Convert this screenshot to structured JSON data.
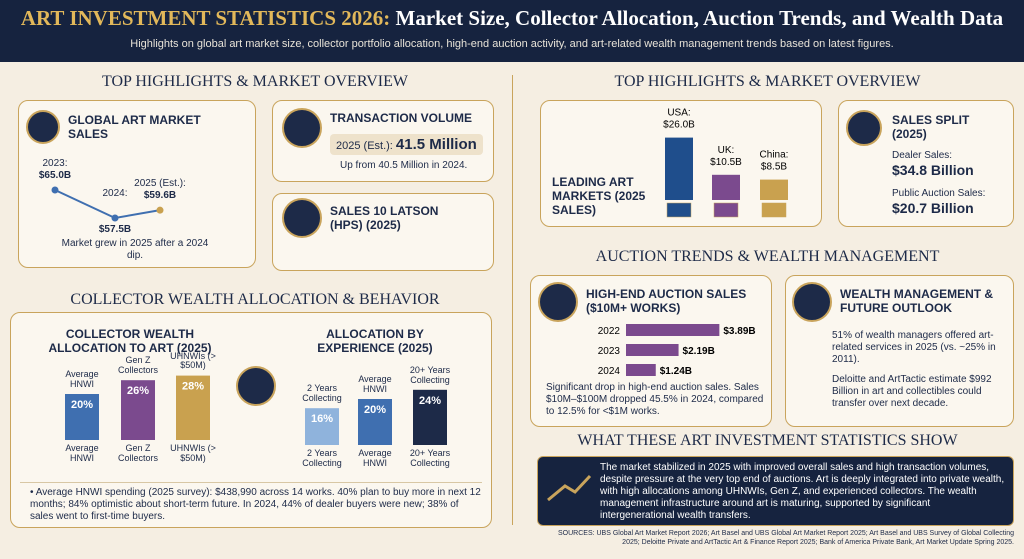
{
  "header": {
    "title_accent": "ART INVESTMENT STATISTICS 2026:",
    "title_rest": "Market Size, Collector Allocation, Auction Trends, and Wealth Data",
    "subtitle": "Highlights on global art market size, collector portfolio allocation, high-end auction activity, and art-related wealth management trends based on latest figures."
  },
  "market_overview": {
    "heading": "TOP HIGHLIGHTS & MARKET OVERVIEW",
    "global_sales": {
      "title": "GLOBAL ART MARKET SALES",
      "points": [
        {
          "year": "2023:",
          "value": 65.0,
          "value_label": "$65.0B"
        },
        {
          "year": "2024:",
          "value": 57.5,
          "value_label": "$57.5B"
        },
        {
          "year": "2025 (Est.):",
          "value": 59.6,
          "value_label": "$59.6B"
        }
      ],
      "note": "Market grew in 2025 after a 2024 dip."
    },
    "transaction_volume": {
      "title": "TRANSACTION VOLUME",
      "label": "2025 (Est.):",
      "value": "41.5 Million",
      "note": "Up from 40.5 Million in 2024."
    },
    "sales_card": {
      "title": "SALES 10 LATSON (HPS) (2025)"
    }
  },
  "collector": {
    "heading": "COLLECTOR WEALTH ALLOCATION & BEHAVIOR",
    "charts": [
      {
        "title": "COLLECTOR WEALTH ALLOCATION TO ART (2025)",
        "categories": [
          "Average HNWI",
          "Gen Z Collectors",
          "UHNWIs (> $50M)"
        ],
        "values": [
          20,
          26,
          28
        ],
        "value_labels": [
          "20%",
          "26%",
          "28%"
        ],
        "colors": [
          "#3f6fb0",
          "#7b4a8e",
          "#c9a14f"
        ]
      },
      {
        "title": "ALLOCATION BY EXPERIENCE (2025)",
        "categories": [
          "2 Years Collecting",
          "Average HNWI",
          "20+ Years Collecting"
        ],
        "values": [
          16,
          20,
          24
        ],
        "value_labels": [
          "16%",
          "20%",
          "24%"
        ],
        "colors": [
          "#8fb3dc",
          "#3f6fb0",
          "#1d2a48"
        ]
      }
    ],
    "bullet": "Average HNWI spending (2025 survey): $438,990 across 14 works. 40% plan to buy more in next 12 months; 84% optimistic about short-term future. In 2024, 44% of dealer buyers were new; 38% of sales went to first-time buyers."
  },
  "right_overview": {
    "heading": "TOP HIGHLIGHTS & MARKET OVERVIEW",
    "leading_markets": {
      "title": "LEADING ART MARKETS (2025 SALES)",
      "categories": [
        "USA:",
        "UK:",
        "China:"
      ],
      "values": [
        26.0,
        10.5,
        8.5
      ],
      "value_labels": [
        "$26.0B",
        "$10.5B",
        "$8.5B"
      ],
      "colors": [
        "#1f4e8c",
        "#7b4a8e",
        "#c9a14f"
      ]
    },
    "sales_split": {
      "title": "SALES SPLIT (2025)",
      "items": [
        {
          "label": "Dealer Sales:",
          "value": "$34.8 Billion"
        },
        {
          "label": "Public Auction Sales:",
          "value": "$20.7 Billion"
        }
      ]
    }
  },
  "auction": {
    "heading": "AUCTION TRENDS & WEALTH MANAGEMENT",
    "high_end": {
      "title": "HIGH-END AUCTION SALES ($10M+ WORKS)",
      "categories": [
        "2022",
        "2023",
        "2024"
      ],
      "values": [
        3.89,
        2.19,
        1.24
      ],
      "value_labels": [
        "$3.89B",
        "$2.19B",
        "$1.24B"
      ],
      "color": "#7b4a8e",
      "note": "Significant drop in high-end auction sales. Sales $10M–$100M dropped 45.5% in 2024, compared to 12.5% for <$1M works."
    },
    "wealth": {
      "title": "WEALTH MANAGEMENT & FUTURE OUTLOOK",
      "items": [
        "51% of wealth managers offered art-related services in 2025 (vs. ~25% in 2011).",
        "Deloitte and ArtTactic estimate $992 Billion in art and collectibles could transfer over next decade."
      ]
    }
  },
  "summary": {
    "heading": "WHAT THESE ART INVESTMENT STATISTICS SHOW",
    "text": "The market stabilized in 2025 with improved overall sales and high transaction volumes, despite pressure at the very top end of auctions. Art is deeply integrated into private wealth, with high allocations among UHNWIs, Gen Z, and experienced collectors. The wealth management infrastructure around art is maturing, supported by significant intergenerational wealth transfers.",
    "sources": "SOURCES: UBS Global Art Market Report 2026; Art Basel and UBS Global Art Market Report 2025; Art Basel and UBS Survey of Global Collecting 2025; Deloitte Private and ArtTactic Art & Finance Report 2025; Bank of America Private Bank, Art Market Update Spring 2025."
  }
}
